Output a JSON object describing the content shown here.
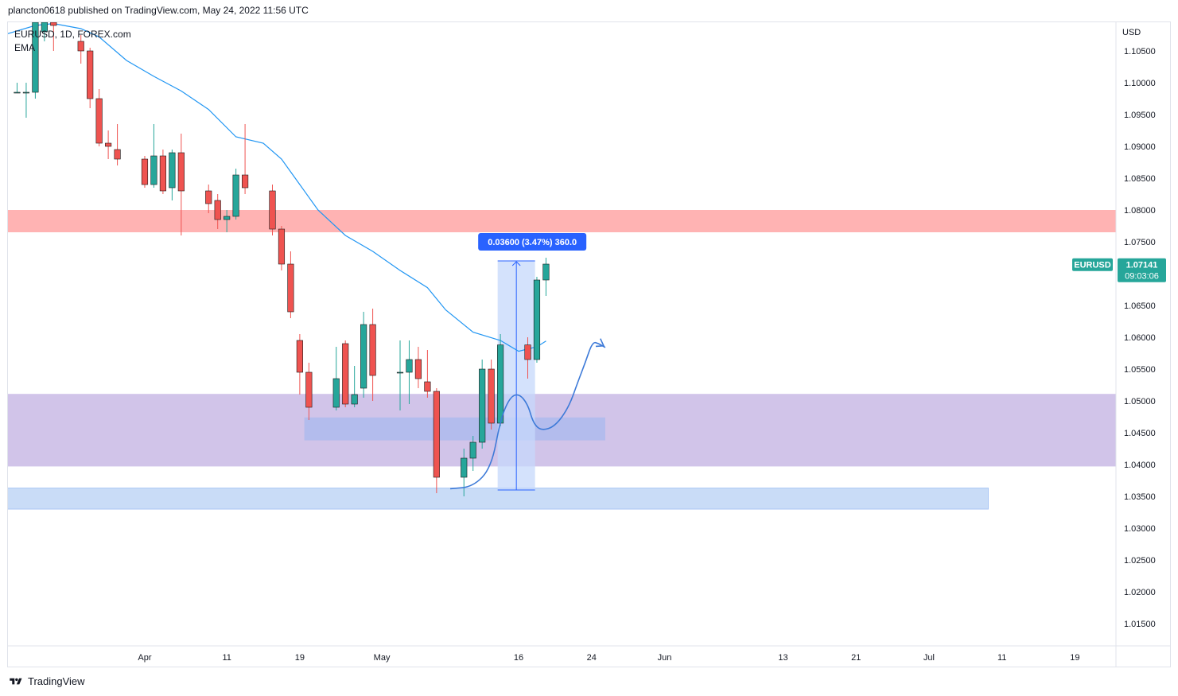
{
  "header": {
    "published_line": "plancton0618 published on TradingView.com, May 24, 2022 11:56 UTC"
  },
  "legend": {
    "symbol_line": "EURUSD, 1D, FOREX.com",
    "indicator": "EMA"
  },
  "footer": {
    "brand": "TradingView"
  },
  "colors": {
    "up": "#26a69a",
    "down": "#ef5350",
    "ema": "#2196f3",
    "resistance_zone": "#ffb3b3",
    "support_zone": "#d1c4e9",
    "low_zone": "#c9dcf7",
    "inner_zone": "#9fb8f0",
    "measure": "#2962ff",
    "price_tag": "#26a69a"
  },
  "chart_data": {
    "type": "candlestick",
    "symbol": "EURUSD",
    "timeframe": "1D",
    "currency": "USD",
    "ylim": [
      1.0115,
      1.1095
    ],
    "y_ticks": [
      "1.10500",
      "1.10000",
      "1.09500",
      "1.09000",
      "1.08500",
      "1.08000",
      "1.07500",
      "1.07000",
      "1.06500",
      "1.06000",
      "1.05500",
      "1.05000",
      "1.04500",
      "1.04000",
      "1.03500",
      "1.03000",
      "1.02500",
      "1.02000",
      "1.01500"
    ],
    "x_ticks": [
      "Apr",
      "11",
      "19",
      "May",
      "16",
      "24",
      "Jun",
      "13",
      "21",
      "Jul",
      "11",
      "19"
    ],
    "x_tick_days": [
      15,
      24,
      32,
      41,
      56,
      64,
      72,
      85,
      93,
      101,
      109,
      117
    ],
    "xlim": [
      0,
      121.5
    ],
    "candles": [
      {
        "d": 1,
        "o": 1.0985,
        "h": 1.1,
        "l": 1.0985,
        "c": 1.0985
      },
      {
        "d": 2,
        "o": 1.0985,
        "h": 1.1,
        "l": 1.0945,
        "c": 1.0985
      },
      {
        "d": 3,
        "o": 1.0985,
        "h": 1.1095,
        "l": 1.0975,
        "c": 1.1095
      },
      {
        "d": 4,
        "o": 1.108,
        "h": 1.1115,
        "l": 1.1065,
        "c": 1.1095
      },
      {
        "d": 5,
        "o": 1.1095,
        "h": 1.111,
        "l": 1.105,
        "c": 1.109
      },
      {
        "d": 8,
        "o": 1.1065,
        "h": 1.1075,
        "l": 1.103,
        "c": 1.105
      },
      {
        "d": 9,
        "o": 1.105,
        "h": 1.1055,
        "l": 1.096,
        "c": 1.0975
      },
      {
        "d": 10,
        "o": 1.0975,
        "h": 1.099,
        "l": 1.09,
        "c": 1.0905
      },
      {
        "d": 11,
        "o": 1.0905,
        "h": 1.0925,
        "l": 1.088,
        "c": 1.09
      },
      {
        "d": 12,
        "o": 1.0895,
        "h": 1.0935,
        "l": 1.087,
        "c": 1.088
      },
      {
        "d": 15,
        "o": 1.088,
        "h": 1.0885,
        "l": 1.0835,
        "c": 1.084
      },
      {
        "d": 16,
        "o": 1.084,
        "h": 1.0935,
        "l": 1.0835,
        "c": 1.0885
      },
      {
        "d": 17,
        "o": 1.0885,
        "h": 1.0895,
        "l": 1.0825,
        "c": 1.083
      },
      {
        "d": 18,
        "o": 1.0835,
        "h": 1.0895,
        "l": 1.0815,
        "c": 1.089
      },
      {
        "d": 19,
        "o": 1.089,
        "h": 1.092,
        "l": 1.076,
        "c": 1.083
      },
      {
        "d": 22,
        "o": 1.083,
        "h": 1.084,
        "l": 1.0795,
        "c": 1.081
      },
      {
        "d": 23,
        "o": 1.0815,
        "h": 1.0825,
        "l": 1.077,
        "c": 1.0785
      },
      {
        "d": 24,
        "o": 1.0785,
        "h": 1.08,
        "l": 1.0765,
        "c": 1.079
      },
      {
        "d": 25,
        "o": 1.079,
        "h": 1.0865,
        "l": 1.0785,
        "c": 1.0855
      },
      {
        "d": 26,
        "o": 1.0855,
        "h": 1.0935,
        "l": 1.0825,
        "c": 1.0835
      },
      {
        "d": 29,
        "o": 1.083,
        "h": 1.084,
        "l": 1.076,
        "c": 1.077
      },
      {
        "d": 30,
        "o": 1.077,
        "h": 1.0775,
        "l": 1.0705,
        "c": 1.0715
      },
      {
        "d": 31,
        "o": 1.0715,
        "h": 1.0735,
        "l": 1.063,
        "c": 1.064
      },
      {
        "d": 32,
        "o": 1.0595,
        "h": 1.0605,
        "l": 1.051,
        "c": 1.0545
      },
      {
        "d": 33,
        "o": 1.0545,
        "h": 1.056,
        "l": 1.047,
        "c": 1.049
      },
      {
        "d": 36,
        "o": 1.049,
        "h": 1.0585,
        "l": 1.0485,
        "c": 1.0535
      },
      {
        "d": 37,
        "o": 1.059,
        "h": 1.0595,
        "l": 1.049,
        "c": 1.0495
      },
      {
        "d": 38,
        "o": 1.0495,
        "h": 1.0555,
        "l": 1.049,
        "c": 1.051
      },
      {
        "d": 39,
        "o": 1.052,
        "h": 1.064,
        "l": 1.0505,
        "c": 1.062
      },
      {
        "d": 40,
        "o": 1.062,
        "h": 1.0645,
        "l": 1.05,
        "c": 1.054
      },
      {
        "d": 43,
        "o": 1.0545,
        "h": 1.0595,
        "l": 1.0485,
        "c": 1.0545
      },
      {
        "d": 44,
        "o": 1.0545,
        "h": 1.0595,
        "l": 1.0495,
        "c": 1.0565
      },
      {
        "d": 45,
        "o": 1.0565,
        "h": 1.0585,
        "l": 1.052,
        "c": 1.0535
      },
      {
        "d": 46,
        "o": 1.053,
        "h": 1.058,
        "l": 1.0505,
        "c": 1.0515
      },
      {
        "d": 47,
        "o": 1.0515,
        "h": 1.052,
        "l": 1.0355,
        "c": 1.038
      },
      {
        "d": 50,
        "o": 1.038,
        "h": 1.0425,
        "l": 1.035,
        "c": 1.041
      },
      {
        "d": 51,
        "o": 1.041,
        "h": 1.0445,
        "l": 1.039,
        "c": 1.0435
      },
      {
        "d": 52,
        "o": 1.0435,
        "h": 1.0565,
        "l": 1.0425,
        "c": 1.055
      },
      {
        "d": 53,
        "o": 1.055,
        "h": 1.0565,
        "l": 1.0455,
        "c": 1.0465
      },
      {
        "d": 54,
        "o": 1.0465,
        "h": 1.0605,
        "l": 1.046,
        "c": 1.0588
      },
      {
        "d": 57,
        "o": 1.0588,
        "h": 1.06,
        "l": 1.0535,
        "c": 1.0565
      },
      {
        "d": 58,
        "o": 1.0565,
        "h": 1.0695,
        "l": 1.056,
        "c": 1.069
      },
      {
        "d": 59,
        "o": 1.069,
        "h": 1.0725,
        "l": 1.0665,
        "c": 1.0715
      }
    ],
    "ema": [
      [
        -0.5,
        1.1075
      ],
      [
        3,
        1.109
      ],
      [
        5,
        1.1093
      ],
      [
        8,
        1.1085
      ],
      [
        10,
        1.1072
      ],
      [
        13,
        1.1035
      ],
      [
        16,
        1.101
      ],
      [
        19,
        1.0987
      ],
      [
        22,
        1.0958
      ],
      [
        25,
        1.0915
      ],
      [
        28,
        1.0905
      ],
      [
        30,
        1.088
      ],
      [
        32,
        1.084
      ],
      [
        34,
        1.08
      ],
      [
        37,
        1.076
      ],
      [
        40,
        1.0735
      ],
      [
        43,
        1.0705
      ],
      [
        46,
        1.0678
      ],
      [
        48,
        1.0643
      ],
      [
        51,
        1.0608
      ],
      [
        54,
        1.0595
      ],
      [
        56,
        1.0578
      ],
      [
        58,
        1.0585
      ],
      [
        59,
        1.0594
      ]
    ],
    "zones": [
      {
        "name": "resistance",
        "y1": 1.0765,
        "y2": 1.08,
        "x1": -0.5,
        "x2": 121.5
      },
      {
        "name": "support",
        "y1": 1.0397,
        "y2": 1.0511,
        "x1": -0.5,
        "x2": 121.5
      },
      {
        "name": "inner",
        "y1": 1.0438,
        "y2": 1.0474,
        "x1": 32.5,
        "x2": 65.5
      },
      {
        "name": "low",
        "y1": 1.033,
        "y2": 1.0363,
        "x1": -0.5,
        "x2": 107.5
      }
    ],
    "measure": {
      "x1": 53.7,
      "x2": 57.8,
      "y_low": 1.036,
      "y_high": 1.072,
      "label": "0.03600 (3.47%) 360.0"
    },
    "projection": [
      [
        48.5,
        1.0362
      ],
      [
        51,
        1.0365
      ],
      [
        53,
        1.0395
      ],
      [
        54,
        1.047
      ],
      [
        55,
        1.0505
      ],
      [
        56,
        1.0512
      ],
      [
        57,
        1.0495
      ],
      [
        57.6,
        1.0465
      ],
      [
        58.5,
        1.0453
      ],
      [
        60,
        1.046
      ],
      [
        61.5,
        1.049
      ],
      [
        62.5,
        1.053
      ],
      [
        63.3,
        1.056
      ],
      [
        64.1,
        1.0593
      ],
      [
        64.8,
        1.059
      ],
      [
        65.5,
        1.0584
      ]
    ],
    "last_price": {
      "label": "1.07141",
      "timer": "09:03:06",
      "symbol": "EURUSD",
      "value": 1.07141
    }
  }
}
